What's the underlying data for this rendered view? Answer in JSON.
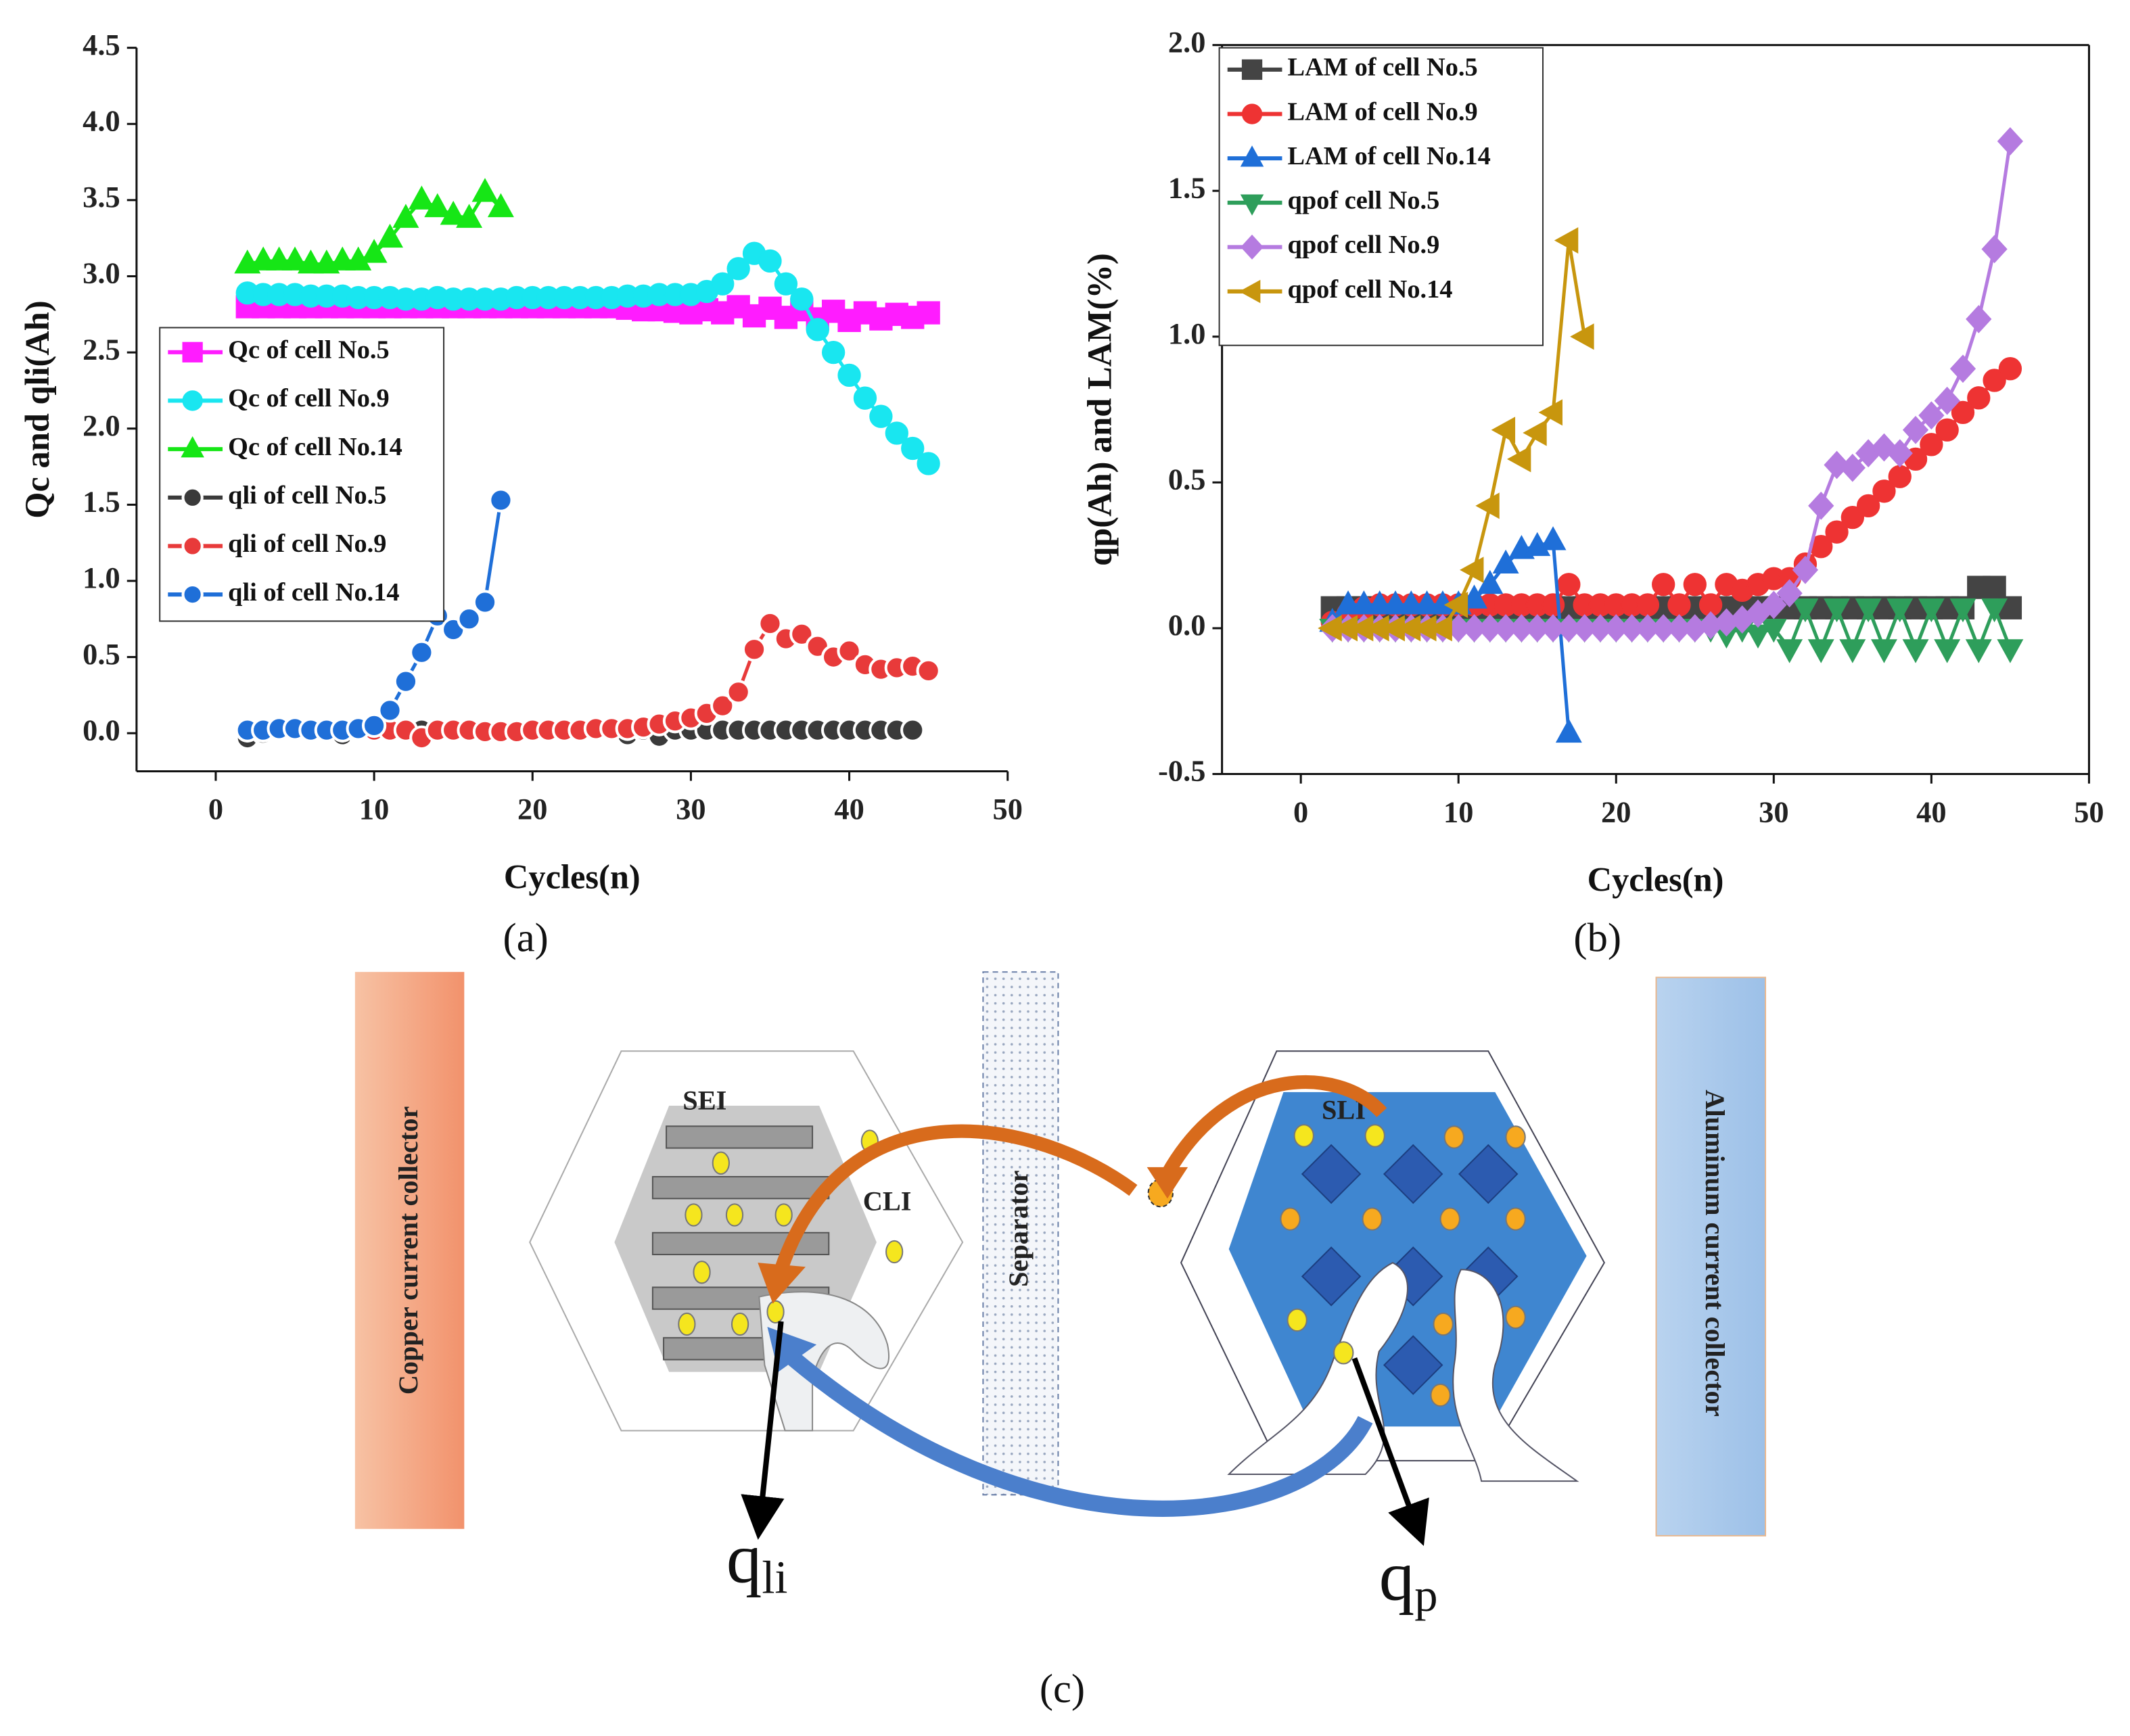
{
  "chart_data": [
    {
      "type": "line",
      "panel_label": "(a)",
      "x_label": "Cycles(n)",
      "y_label": "Qc and qli(Ah)",
      "xlim": [
        -5,
        50
      ],
      "xticks": [
        0,
        10,
        20,
        30,
        40,
        50
      ],
      "ylim": [
        -0.25,
        4.5
      ],
      "yticks": [
        {
          "value": 0,
          "label": "0.0"
        },
        0.5,
        {
          "value": 1,
          "label": "1.0"
        },
        1.5,
        {
          "value": 2,
          "label": "2.0"
        },
        2.5,
        {
          "value": 3,
          "label": "3.0"
        },
        3.5,
        {
          "value": 4,
          "label": "4.0"
        },
        4.5
      ],
      "box": false,
      "series": [
        {
          "name": "Qc of cell No.5",
          "color": "#ff1cff",
          "marker": "square",
          "x": [
            2,
            3,
            4,
            5,
            6,
            7,
            8,
            9,
            10,
            11,
            12,
            13,
            14,
            15,
            16,
            17,
            18,
            19,
            20,
            21,
            22,
            23,
            24,
            25,
            26,
            27,
            28,
            29,
            30,
            31,
            32,
            33,
            34,
            35,
            36,
            37,
            38,
            39,
            40,
            41,
            42,
            43,
            44,
            45
          ],
          "values": [
            2.8,
            2.8,
            2.8,
            2.8,
            2.8,
            2.8,
            2.8,
            2.8,
            2.8,
            2.8,
            2.8,
            2.8,
            2.8,
            2.8,
            2.8,
            2.8,
            2.8,
            2.8,
            2.8,
            2.8,
            2.8,
            2.8,
            2.8,
            2.8,
            2.79,
            2.78,
            2.78,
            2.77,
            2.76,
            2.78,
            2.76,
            2.8,
            2.74,
            2.79,
            2.73,
            2.78,
            2.72,
            2.77,
            2.71,
            2.76,
            2.72,
            2.75,
            2.73,
            2.76
          ]
        },
        {
          "name": "Qc of cell No.9",
          "color": "#19e6f0",
          "marker": "circle",
          "x": [
            2,
            3,
            4,
            5,
            6,
            7,
            8,
            9,
            10,
            11,
            12,
            13,
            14,
            15,
            16,
            17,
            18,
            19,
            20,
            21,
            22,
            23,
            24,
            25,
            26,
            27,
            28,
            29,
            30,
            31,
            32,
            33,
            34,
            35,
            36,
            37,
            38,
            39,
            40,
            41,
            42,
            43,
            44,
            45
          ],
          "values": [
            2.89,
            2.88,
            2.88,
            2.88,
            2.87,
            2.87,
            2.87,
            2.86,
            2.86,
            2.86,
            2.85,
            2.85,
            2.86,
            2.85,
            2.85,
            2.85,
            2.85,
            2.86,
            2.86,
            2.86,
            2.86,
            2.86,
            2.86,
            2.86,
            2.87,
            2.87,
            2.88,
            2.88,
            2.88,
            2.9,
            2.95,
            3.05,
            3.15,
            3.1,
            2.95,
            2.85,
            2.65,
            2.5,
            2.35,
            2.2,
            2.08,
            1.97,
            1.87,
            1.77
          ]
        },
        {
          "name": "Qc of cell No.14",
          "color": "#16e616",
          "marker": "triangle",
          "x": [
            2,
            3,
            4,
            5,
            6,
            7,
            8,
            9,
            10,
            11,
            12,
            13,
            14,
            15,
            16,
            17,
            18
          ],
          "values": [
            3.08,
            3.1,
            3.1,
            3.1,
            3.08,
            3.08,
            3.1,
            3.1,
            3.15,
            3.25,
            3.38,
            3.5,
            3.45,
            3.4,
            3.38,
            3.55,
            3.45
          ]
        },
        {
          "name": "qli of cell No.5",
          "color": "#3a3a3a",
          "marker": "sphere",
          "x": [
            2,
            3,
            4,
            5,
            6,
            7,
            8,
            9,
            10,
            11,
            12,
            13,
            14,
            15,
            16,
            17,
            18,
            19,
            20,
            21,
            22,
            23,
            24,
            25,
            26,
            27,
            28,
            29,
            30,
            31,
            32,
            33,
            34,
            35,
            36,
            37,
            38,
            39,
            40,
            41,
            42,
            43,
            44
          ],
          "values": [
            -0.03,
            0.0,
            0.01,
            0.01,
            0.02,
            0.02,
            -0.01,
            0.01,
            0.02,
            0.01,
            0.02,
            0.02,
            0.02,
            0.02,
            0.02,
            0.02,
            0.02,
            0.02,
            0.02,
            0.02,
            0.02,
            0.02,
            0.02,
            0.02,
            -0.01,
            0.02,
            -0.02,
            0.02,
            0.02,
            0.02,
            0.02,
            0.02,
            0.02,
            0.02,
            0.02,
            0.02,
            0.02,
            0.02,
            0.02,
            0.02,
            0.02,
            0.02,
            0.02
          ]
        },
        {
          "name": "qli of cell No.9",
          "color": "#e83a3a",
          "marker": "sphere",
          "x": [
            2,
            3,
            4,
            5,
            6,
            7,
            8,
            9,
            10,
            11,
            12,
            13,
            14,
            15,
            16,
            17,
            18,
            19,
            20,
            21,
            22,
            23,
            24,
            25,
            26,
            27,
            28,
            29,
            30,
            31,
            32,
            33,
            34,
            35,
            36,
            37,
            38,
            39,
            40,
            41,
            42,
            43,
            44,
            45
          ],
          "values": [
            0.02,
            0.02,
            0.02,
            0.02,
            0.03,
            0.02,
            0.02,
            0.02,
            0.02,
            0.02,
            0.02,
            -0.03,
            0.02,
            0.02,
            0.02,
            0.01,
            0.01,
            0.01,
            0.02,
            0.02,
            0.02,
            0.02,
            0.03,
            0.03,
            0.03,
            0.04,
            0.06,
            0.08,
            0.1,
            0.13,
            0.18,
            0.27,
            0.55,
            0.72,
            0.62,
            0.65,
            0.57,
            0.5,
            0.54,
            0.45,
            0.42,
            0.43,
            0.44,
            0.41
          ]
        },
        {
          "name": "qli of cell No.14",
          "color": "#1f6fd8",
          "marker": "sphere",
          "x": [
            2,
            3,
            4,
            5,
            6,
            7,
            8,
            9,
            10,
            11,
            12,
            13,
            14,
            15,
            16,
            17,
            18
          ],
          "values": [
            0.02,
            0.02,
            0.03,
            0.03,
            0.02,
            0.02,
            0.02,
            0.03,
            0.05,
            0.15,
            0.34,
            0.53,
            0.77,
            0.68,
            0.75,
            0.86,
            1.53
          ]
        }
      ]
    },
    {
      "type": "line",
      "panel_label": "(b)",
      "x_label": "Cycles(n)",
      "y_label": "qp(Ah) and LAM(%)",
      "xlim": [
        -5,
        50
      ],
      "xticks": [
        0,
        10,
        20,
        30,
        40,
        50
      ],
      "ylim": [
        -0.5,
        2.0
      ],
      "yticks": [
        -0.5,
        {
          "value": 0,
          "label": "0.0"
        },
        0.5,
        {
          "value": 1,
          "label": "1.0"
        },
        1.5,
        {
          "value": 2,
          "label": "2.0"
        }
      ],
      "box": true,
      "series": [
        {
          "name": "LAM of cell No.5",
          "color": "#444444",
          "marker": "square",
          "x": [
            2,
            3,
            4,
            5,
            6,
            7,
            8,
            9,
            10,
            11,
            12,
            13,
            14,
            15,
            16,
            17,
            18,
            19,
            20,
            21,
            22,
            23,
            24,
            25,
            26,
            27,
            28,
            29,
            30,
            31,
            32,
            33,
            34,
            35,
            36,
            37,
            38,
            39,
            40,
            41,
            42,
            43,
            44,
            45
          ],
          "values": [
            0.07,
            0.07,
            0.07,
            0.07,
            0.07,
            0.07,
            0.07,
            0.07,
            0.07,
            0.07,
            0.07,
            0.07,
            0.07,
            0.07,
            0.07,
            0.07,
            0.07,
            0.07,
            0.07,
            0.07,
            0.07,
            0.07,
            0.07,
            0.07,
            0.07,
            0.07,
            0.07,
            0.07,
            0.07,
            0.07,
            0.07,
            0.07,
            0.07,
            0.07,
            0.07,
            0.07,
            0.07,
            0.07,
            0.07,
            0.07,
            0.07,
            0.14,
            0.14,
            0.07
          ]
        },
        {
          "name": "LAM of cell No.9",
          "color": "#ee3333",
          "marker": "circle",
          "x": [
            2,
            3,
            4,
            5,
            6,
            7,
            8,
            9,
            10,
            11,
            12,
            13,
            14,
            15,
            16,
            17,
            18,
            19,
            20,
            21,
            22,
            23,
            24,
            25,
            26,
            27,
            28,
            29,
            30,
            31,
            32,
            33,
            34,
            35,
            36,
            37,
            38,
            39,
            40,
            41,
            42,
            43,
            44,
            45
          ],
          "values": [
            0.02,
            0.05,
            0.07,
            0.08,
            0.08,
            0.08,
            0.08,
            0.08,
            0.08,
            0.08,
            0.08,
            0.08,
            0.08,
            0.08,
            0.08,
            0.15,
            0.08,
            0.08,
            0.08,
            0.08,
            0.08,
            0.15,
            0.08,
            0.15,
            0.08,
            0.15,
            0.13,
            0.15,
            0.17,
            0.17,
            0.22,
            0.28,
            0.33,
            0.38,
            0.42,
            0.47,
            0.52,
            0.58,
            0.63,
            0.68,
            0.74,
            0.79,
            0.85,
            0.89
          ]
        },
        {
          "name": "LAM of cell No.14",
          "color": "#1f6fd8",
          "marker": "triangle",
          "x": [
            2,
            3,
            4,
            5,
            6,
            7,
            8,
            9,
            10,
            11,
            12,
            13,
            14,
            15,
            16,
            17
          ],
          "values": [
            0.02,
            0.08,
            0.08,
            0.08,
            0.08,
            0.08,
            0.08,
            0.08,
            0.08,
            0.1,
            0.15,
            0.22,
            0.27,
            0.28,
            0.3,
            -0.36
          ]
        },
        {
          "name": "qpof cell No.5",
          "color": "#2e9e5b",
          "marker": "triangle-down",
          "x": [
            2,
            3,
            4,
            5,
            6,
            7,
            8,
            9,
            10,
            11,
            12,
            13,
            14,
            15,
            16,
            17,
            18,
            19,
            20,
            21,
            22,
            23,
            24,
            25,
            26,
            27,
            28,
            29,
            30,
            31,
            32,
            33,
            34,
            35,
            36,
            37,
            38,
            39,
            40,
            41,
            42,
            43,
            44,
            45
          ],
          "values": [
            0,
            0,
            0,
            0,
            0,
            0,
            0,
            0,
            0,
            0,
            0,
            0,
            0,
            0,
            0,
            0,
            0,
            0,
            0,
            0,
            0,
            0,
            0,
            0,
            0,
            -0.02,
            0,
            -0.02,
            0,
            -0.07,
            0.07,
            -0.07,
            0.07,
            -0.07,
            0.07,
            -0.07,
            0.07,
            -0.07,
            0.07,
            -0.07,
            0.07,
            -0.07,
            0.07,
            -0.07
          ]
        },
        {
          "name": "qpof cell No.9",
          "color": "#b57be0",
          "marker": "diamond",
          "x": [
            2,
            3,
            4,
            5,
            6,
            7,
            8,
            9,
            10,
            11,
            12,
            13,
            14,
            15,
            16,
            17,
            18,
            19,
            20,
            21,
            22,
            23,
            24,
            25,
            26,
            27,
            28,
            29,
            30,
            31,
            32,
            33,
            34,
            35,
            36,
            37,
            38,
            39,
            40,
            41,
            42,
            43,
            44,
            45
          ],
          "values": [
            0,
            0,
            0,
            0,
            0,
            0,
            0,
            0,
            0,
            0,
            0,
            0,
            0,
            0,
            0,
            0,
            0,
            0,
            0,
            0,
            0,
            0,
            0,
            0,
            0.01,
            0.02,
            0.03,
            0.05,
            0.08,
            0.12,
            0.2,
            0.42,
            0.56,
            0.55,
            0.6,
            0.62,
            0.6,
            0.68,
            0.73,
            0.78,
            0.89,
            1.06,
            1.3,
            1.67
          ]
        },
        {
          "name": "qpof cell No.14",
          "color": "#c8960e",
          "marker": "triangle-left",
          "x": [
            2,
            3,
            4,
            5,
            6,
            7,
            8,
            9,
            10,
            11,
            12,
            13,
            14,
            15,
            16,
            17,
            18
          ],
          "values": [
            0,
            0,
            0,
            0,
            0,
            0,
            0,
            0,
            0.08,
            0.2,
            0.42,
            0.68,
            0.58,
            0.67,
            0.74,
            1.33,
            1.0
          ]
        }
      ]
    }
  ],
  "diagram": {
    "panel_label": "(c)",
    "copper": "Copper current collector",
    "separator": "Separator",
    "aluminum": "Aluminum current collector",
    "sei": "SEI",
    "cli": "CLI",
    "sli": "SLI",
    "q_li": {
      "base": "q",
      "sub": "li"
    },
    "q_p": {
      "base": "q",
      "sub": "p"
    }
  }
}
